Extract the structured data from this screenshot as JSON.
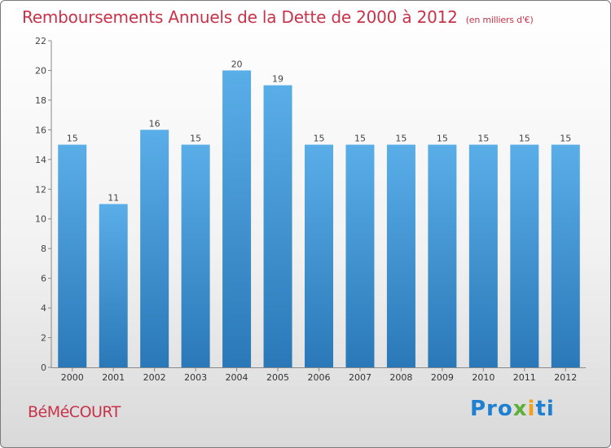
{
  "header": {
    "title": "Remboursements Annuels de la Dette de 2000 à 2012",
    "unit": "(en milliers d'€)"
  },
  "footer": {
    "commune": "BéMéCOURT",
    "brand": "Proxiti"
  },
  "colors": {
    "title": "#c8334a",
    "bar_top": "#5aaee8",
    "bar_bottom": "#2a78b8"
  },
  "chart_data": {
    "type": "bar",
    "title": "Remboursements Annuels de la Dette de 2000 à 2012",
    "xlabel": "",
    "ylabel": "",
    "categories": [
      "2000",
      "2001",
      "2002",
      "2003",
      "2004",
      "2005",
      "2006",
      "2007",
      "2008",
      "2009",
      "2010",
      "2011",
      "2012"
    ],
    "values": [
      15,
      11,
      16,
      15,
      20,
      19,
      15,
      15,
      15,
      15,
      15,
      15,
      15
    ],
    "ylim": [
      0,
      22
    ],
    "yticks": [
      0,
      2,
      4,
      6,
      8,
      10,
      12,
      14,
      16,
      18,
      20,
      22
    ],
    "grid": false,
    "legend": "none"
  }
}
